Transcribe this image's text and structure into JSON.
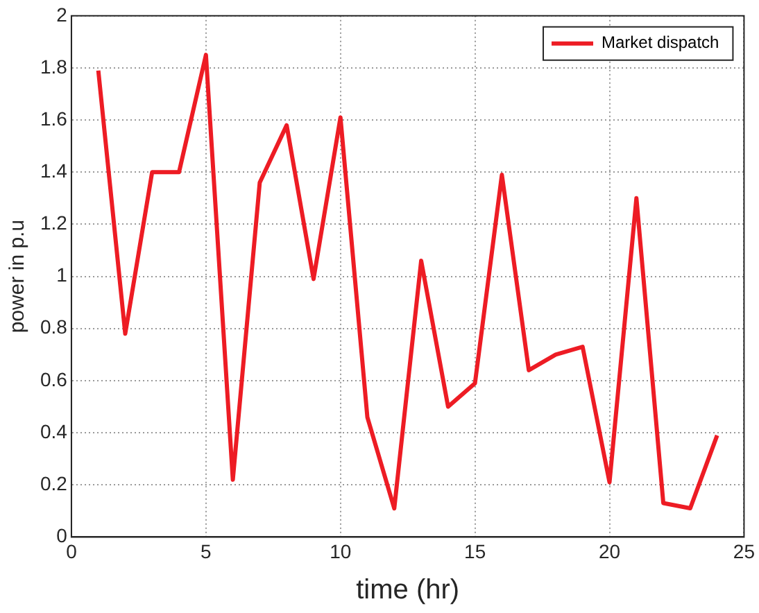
{
  "chart_data": {
    "type": "line",
    "xlabel": "time (hr)",
    "ylabel": "power in p.u",
    "x": [
      1,
      2,
      3,
      4,
      5,
      6,
      7,
      8,
      9,
      10,
      11,
      12,
      13,
      14,
      15,
      16,
      17,
      18,
      19,
      20,
      21,
      22,
      23,
      24
    ],
    "series": [
      {
        "name": "Market dispatch",
        "color": "#ed1c24",
        "values": [
          1.79,
          0.78,
          1.4,
          1.4,
          1.85,
          0.22,
          1.36,
          1.58,
          0.99,
          1.61,
          0.46,
          0.11,
          1.06,
          0.5,
          0.59,
          1.39,
          0.64,
          0.7,
          0.73,
          0.21,
          1.3,
          0.13,
          0.11,
          0.39
        ]
      }
    ],
    "xlim": [
      0,
      25
    ],
    "xticks": [
      0,
      5,
      10,
      15,
      20,
      25
    ],
    "ylim": [
      0,
      2
    ],
    "yticks": [
      0,
      0.2,
      0.4,
      0.6,
      0.8,
      1,
      1.2,
      1.4,
      1.6,
      1.8,
      2
    ],
    "grid": true,
    "legend": "top right",
    "marker": "none",
    "line_style": "solid"
  }
}
